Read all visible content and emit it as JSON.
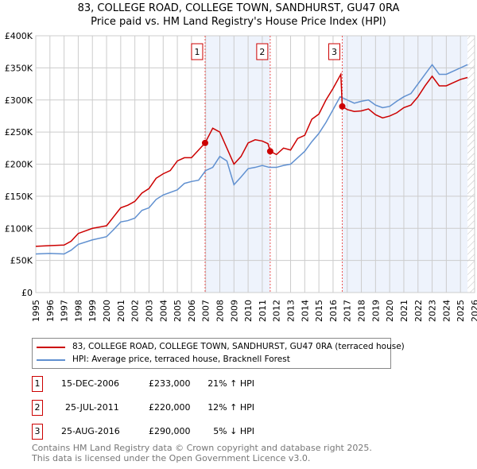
{
  "chart_data": {
    "type": "line",
    "title": "83, COLLEGE ROAD, COLLEGE TOWN, SANDHURST, GU47 0RA",
    "subtitle": "Price paid vs. HM Land Registry's House Price Index (HPI)",
    "xlim": [
      1995,
      2026
    ],
    "ylim": [
      0,
      400000
    ],
    "y_ticks": [
      {
        "v": 0,
        "label": "£0"
      },
      {
        "v": 50000,
        "label": "£50K"
      },
      {
        "v": 100000,
        "label": "£100K"
      },
      {
        "v": 150000,
        "label": "£150K"
      },
      {
        "v": 200000,
        "label": "£200K"
      },
      {
        "v": 250000,
        "label": "£250K"
      },
      {
        "v": 300000,
        "label": "£300K"
      },
      {
        "v": 350000,
        "label": "£350K"
      },
      {
        "v": 400000,
        "label": "£400K"
      }
    ],
    "x_ticks": [
      "1995",
      "1996",
      "1997",
      "1998",
      "1999",
      "2000",
      "2001",
      "2002",
      "2003",
      "2004",
      "2005",
      "2006",
      "2007",
      "2008",
      "2009",
      "2010",
      "2011",
      "2012",
      "2013",
      "2014",
      "2015",
      "2016",
      "2017",
      "2018",
      "2019",
      "2020",
      "2021",
      "2022",
      "2023",
      "2024",
      "2025",
      "2026"
    ],
    "series": [
      {
        "name": "83, COLLEGE ROAD, COLLEGE TOWN, SANDHURST, GU47 0RA (terraced house)",
        "color": "#cc0000",
        "x": [
          1995,
          1996,
          1997,
          1997.5,
          1998,
          1999,
          2000,
          2000.5,
          2001,
          2001.5,
          2002,
          2002.5,
          2003,
          2003.5,
          2004,
          2004.5,
          2005,
          2005.5,
          2006,
          2006.5,
          2006.96,
          2007.5,
          2008,
          2008.5,
          2009,
          2009.5,
          2010,
          2010.5,
          2011,
          2011.4,
          2011.56,
          2012,
          2012.5,
          2013,
          2013.5,
          2014,
          2014.5,
          2015,
          2015.5,
          2016,
          2016.55,
          2016.65,
          2017,
          2017.5,
          2018,
          2018.5,
          2019,
          2019.5,
          2020,
          2020.5,
          2021,
          2021.5,
          2022,
          2022.5,
          2023,
          2023.5,
          2024,
          2024.5,
          2025,
          2025.5
        ],
        "y": [
          72000,
          73000,
          74000,
          80000,
          92000,
          100000,
          104000,
          118000,
          132000,
          136000,
          142000,
          155000,
          162000,
          178000,
          185000,
          190000,
          205000,
          210000,
          210000,
          222000,
          233000,
          256000,
          250000,
          225000,
          200000,
          212000,
          233000,
          238000,
          236000,
          232000,
          220000,
          215000,
          225000,
          222000,
          240000,
          245000,
          270000,
          278000,
          300000,
          318000,
          340000,
          290000,
          285000,
          282000,
          283000,
          286000,
          277000,
          272000,
          275000,
          280000,
          288000,
          292000,
          305000,
          322000,
          337000,
          322000,
          322000,
          327000,
          332000,
          335000
        ]
      },
      {
        "name": "HPI: Average price, terraced house, Bracknell Forest",
        "color": "#6090d0",
        "x": [
          1995,
          1996,
          1997,
          1997.5,
          1998,
          1999,
          2000,
          2000.5,
          2001,
          2001.5,
          2002,
          2002.5,
          2003,
          2003.5,
          2004,
          2005,
          2005.5,
          2006,
          2006.5,
          2007,
          2007.5,
          2008,
          2008.5,
          2009,
          2009.5,
          2010,
          2010.5,
          2011,
          2011.5,
          2012,
          2012.5,
          2013,
          2013.5,
          2014,
          2014.5,
          2015,
          2015.5,
          2016,
          2016.5,
          2017,
          2017.5,
          2018,
          2018.5,
          2019,
          2019.5,
          2020,
          2020.5,
          2021,
          2021.5,
          2022,
          2022.5,
          2023,
          2023.5,
          2024,
          2024.5,
          2025,
          2025.5
        ],
        "y": [
          60000,
          61000,
          60000,
          66000,
          75000,
          82000,
          87000,
          98000,
          110000,
          112000,
          116000,
          128000,
          132000,
          145000,
          152000,
          160000,
          170000,
          173000,
          175000,
          190000,
          195000,
          212000,
          205000,
          168000,
          180000,
          193000,
          195000,
          198000,
          195000,
          195000,
          198000,
          200000,
          210000,
          220000,
          235000,
          248000,
          265000,
          285000,
          305000,
          300000,
          295000,
          298000,
          300000,
          292000,
          288000,
          290000,
          298000,
          305000,
          310000,
          325000,
          340000,
          355000,
          340000,
          340000,
          345000,
          350000,
          355000
        ]
      }
    ],
    "sales": [
      {
        "label": "1",
        "x": 2006.96,
        "y": 233000,
        "date": "15-DEC-2006",
        "price": "£233,000",
        "hpi": "21% ↑ HPI"
      },
      {
        "label": "2",
        "x": 2011.56,
        "y": 220000,
        "date": "25-JUL-2011",
        "price": "£220,000",
        "hpi": "12% ↑ HPI"
      },
      {
        "label": "3",
        "x": 2016.65,
        "y": 290000,
        "date": "25-AUG-2016",
        "price": "£290,000",
        "hpi": "5% ↓ HPI"
      }
    ],
    "data_end": 2025.5,
    "grid": true,
    "legend": "below"
  },
  "footer": {
    "line1": "Contains HM Land Registry data © Crown copyright and database right 2025.",
    "line2": "This data is licensed under the Open Government Licence v3.0."
  }
}
